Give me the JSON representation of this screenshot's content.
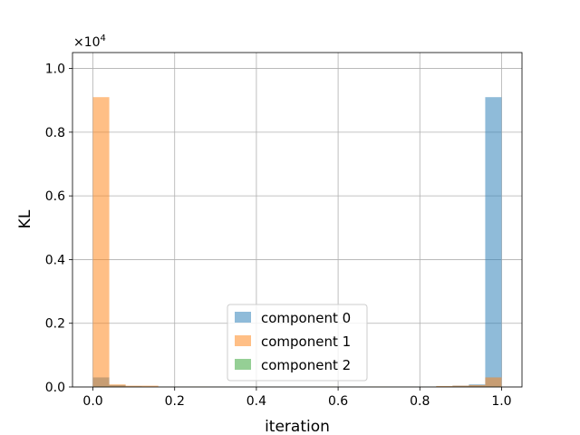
{
  "chart_data": {
    "type": "bar",
    "xlabel": "iteration",
    "ylabel": "KL",
    "y_multiplier_label": "×10",
    "y_multiplier_exp": "4",
    "xlim": [
      -0.05,
      1.05
    ],
    "ylim": [
      0,
      10500
    ],
    "grid": true,
    "legend_position": "lower center",
    "bin_width": 0.04,
    "x_ticks": [
      {
        "value": 0.0,
        "label": "0.0"
      },
      {
        "value": 0.2,
        "label": "0.2"
      },
      {
        "value": 0.4,
        "label": "0.4"
      },
      {
        "value": 0.6,
        "label": "0.6"
      },
      {
        "value": 0.8,
        "label": "0.8"
      },
      {
        "value": 1.0,
        "label": "1.0"
      }
    ],
    "y_ticks": [
      {
        "value": 0,
        "label": "0.0"
      },
      {
        "value": 2000,
        "label": "0.2"
      },
      {
        "value": 4000,
        "label": "0.4"
      },
      {
        "value": 6000,
        "label": "0.6"
      },
      {
        "value": 8000,
        "label": "0.8"
      },
      {
        "value": 10000,
        "label": "1.0"
      }
    ],
    "x": [
      0.0,
      0.04,
      0.08,
      0.12,
      0.16,
      0.2,
      0.24,
      0.28,
      0.32,
      0.36,
      0.4,
      0.44,
      0.48,
      0.52,
      0.56,
      0.6,
      0.64,
      0.68,
      0.72,
      0.76,
      0.8,
      0.84,
      0.88,
      0.92,
      0.96
    ],
    "series": [
      {
        "name": "component 0",
        "color": "#1f77b4",
        "values": [
          300,
          60,
          20,
          10,
          5,
          5,
          5,
          5,
          5,
          5,
          5,
          5,
          5,
          5,
          5,
          5,
          5,
          5,
          5,
          5,
          5,
          20,
          40,
          80,
          9100
        ]
      },
      {
        "name": "component 1",
        "color": "#ff7f0e",
        "values": [
          9100,
          80,
          40,
          40,
          5,
          5,
          10,
          5,
          5,
          5,
          5,
          5,
          5,
          5,
          10,
          5,
          5,
          10,
          5,
          5,
          5,
          30,
          40,
          60,
          300
        ]
      },
      {
        "name": "component 2",
        "color": "#2ca02c",
        "values": [
          10,
          5,
          5,
          5,
          5,
          5,
          5,
          5,
          5,
          5,
          5,
          5,
          5,
          5,
          5,
          5,
          5,
          5,
          5,
          5,
          5,
          5,
          5,
          5,
          10
        ]
      }
    ]
  }
}
